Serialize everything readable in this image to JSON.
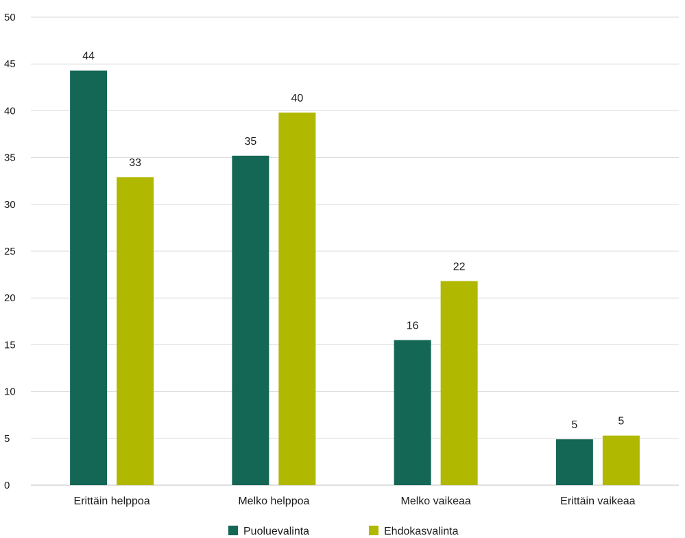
{
  "chart_data": {
    "type": "bar",
    "categories": [
      "Erittäin helppoa",
      "Melko helppoa",
      "Melko vaikeaa",
      "Erittäin vaikeaa"
    ],
    "series": [
      {
        "name": "Puoluevalinta",
        "color": "#146655",
        "values": [
          44.3,
          35.2,
          15.5,
          4.9
        ],
        "labels": [
          "44",
          "35",
          "16",
          "5"
        ]
      },
      {
        "name": "Ehdokasvalinta",
        "color": "#b0b800",
        "values": [
          32.9,
          39.8,
          21.8,
          5.3
        ],
        "labels": [
          "33",
          "40",
          "22",
          "5"
        ]
      }
    ],
    "title": "",
    "xlabel": "",
    "ylabel": "",
    "ylim": [
      0,
      50
    ],
    "yticks": [
      "0",
      "5",
      "10",
      "15",
      "20",
      "25",
      "30",
      "35",
      "40",
      "45",
      "50"
    ],
    "grid": true,
    "legend": "bottom"
  }
}
